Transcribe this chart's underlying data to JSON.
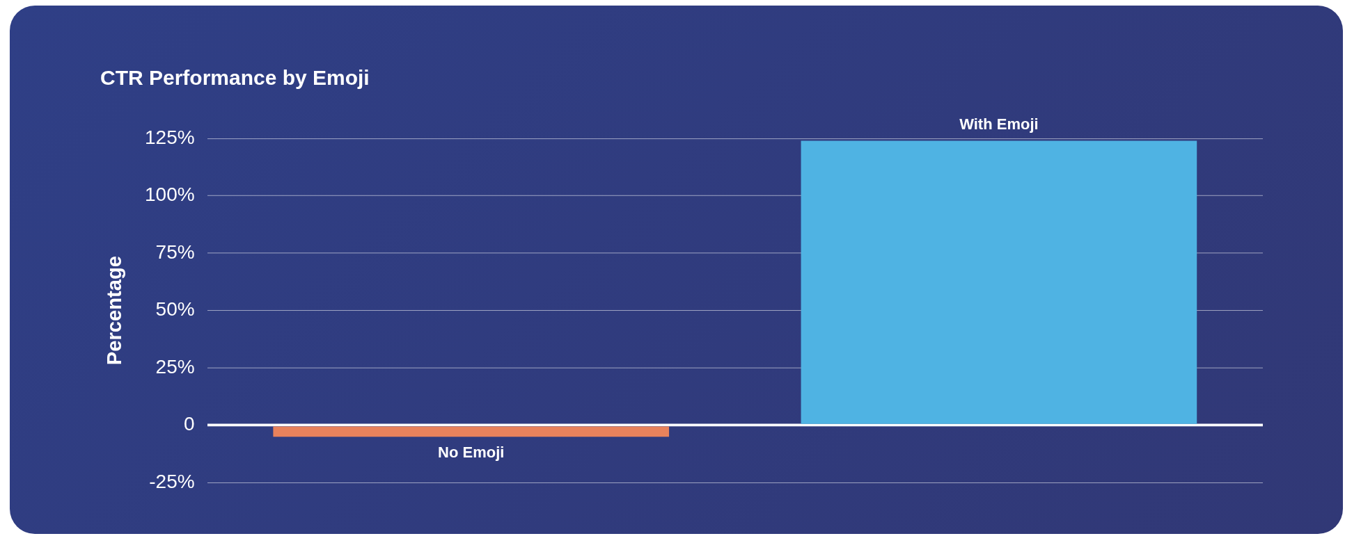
{
  "chart_data": {
    "type": "bar",
    "title": "CTR Performance by Emoji",
    "ylabel": "Percentage",
    "categories": [
      "No Emoji",
      "With Emoji"
    ],
    "series": [
      {
        "values": [
          -5,
          124
        ],
        "colors": [
          "#e8825c",
          "#4fb3e3"
        ]
      }
    ],
    "ylim": [
      -25,
      125
    ],
    "yticks": [
      {
        "value": -25,
        "label": "-25%"
      },
      {
        "value": 0,
        "label": "0"
      },
      {
        "value": 25,
        "label": "25%"
      },
      {
        "value": 50,
        "label": "50%"
      },
      {
        "value": 75,
        "label": "75%"
      },
      {
        "value": 100,
        "label": "100%"
      },
      {
        "value": 125,
        "label": "125%"
      }
    ],
    "grid": "y",
    "legend": false
  }
}
